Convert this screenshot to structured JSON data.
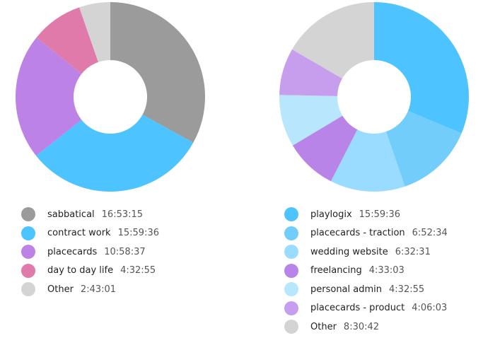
{
  "chart_data": [
    {
      "type": "pie",
      "categories": [
        "sabbatical",
        "contract work",
        "placecards",
        "day to day life",
        "Other"
      ],
      "values": [
        60795,
        57576,
        39517,
        16375,
        9781
      ],
      "value_labels": [
        "16:53:15",
        "15:59:36",
        "10:58:37",
        "4:32:55",
        "2:43:01"
      ],
      "colors": [
        "#9b9b9b",
        "#4dc3ff",
        "#bc82e6",
        "#e07aaa",
        "#d4d4d4"
      ]
    },
    {
      "type": "pie",
      "categories": [
        "playlogix",
        "placecards - traction",
        "wedding website",
        "freelancing",
        "personal admin",
        "placecards - product",
        "Other"
      ],
      "values": [
        57576,
        24754,
        23551,
        16383,
        16375,
        14763,
        30642
      ],
      "value_labels": [
        "15:59:36",
        "6:52:34",
        "6:32:31",
        "4:33:03",
        "4:32:55",
        "4:06:03",
        "8:30:42"
      ],
      "colors": [
        "#4dc3ff",
        "#72cdfb",
        "#99dcff",
        "#b884e8",
        "#b8e6fd",
        "#c79eed",
        "#d4d4d4"
      ]
    }
  ]
}
